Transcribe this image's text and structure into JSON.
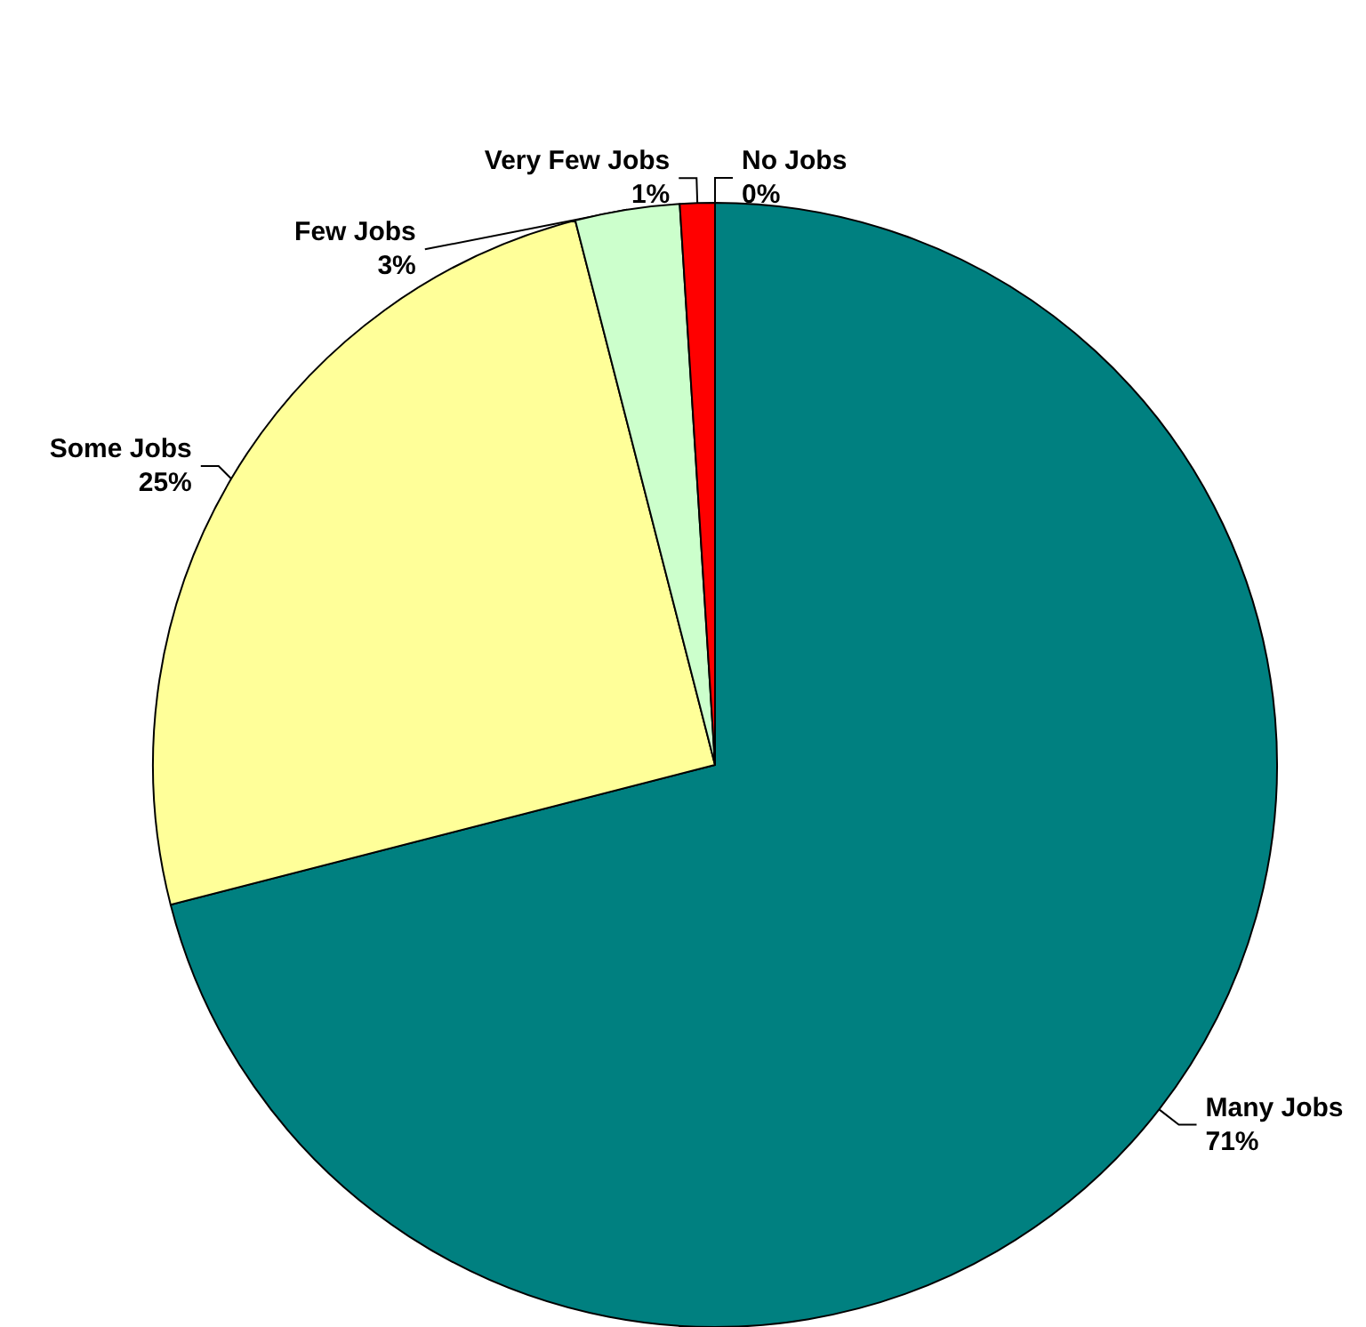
{
  "chart_data": {
    "type": "pie",
    "categories": [
      "Many Jobs",
      "Some Jobs",
      "Few Jobs",
      "Very Few Jobs",
      "No Jobs"
    ],
    "values": [
      71,
      25,
      3,
      1,
      0
    ],
    "value_labels": [
      "71%",
      "25%",
      "3%",
      "1%",
      "0%"
    ],
    "colors": [
      "#008080",
      "#ffff99",
      "#ccffcc",
      "#ff0000",
      "#000080"
    ],
    "legend": false
  }
}
